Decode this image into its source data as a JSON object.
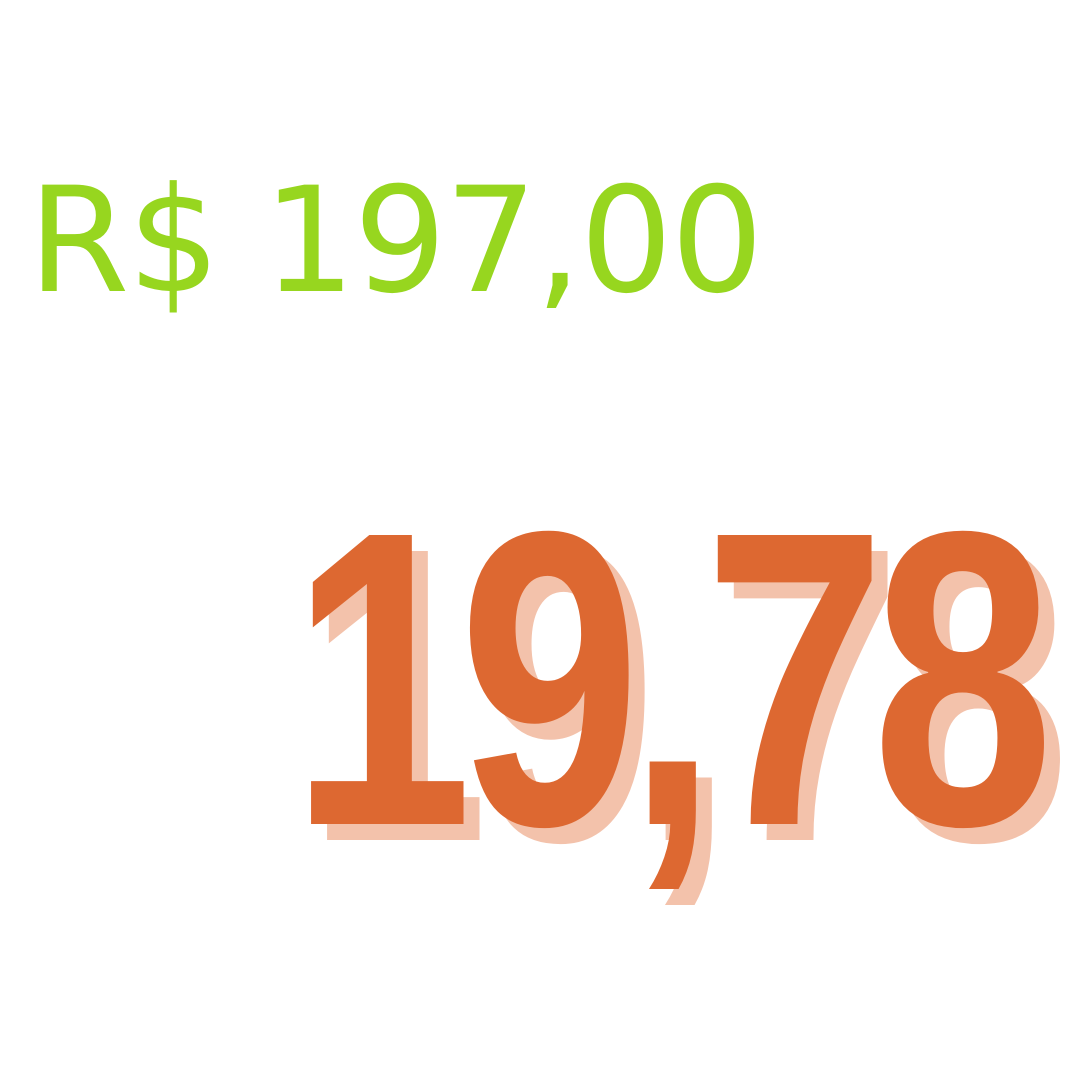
{
  "colors": {
    "background": "#ffffff",
    "original_price": "#97d61f",
    "promo_price": "#dd6831",
    "promo_shadow": "#f3c2ab"
  },
  "original_price": {
    "text": "R$ 197,00"
  },
  "promo_price": {
    "text": "19,78"
  }
}
